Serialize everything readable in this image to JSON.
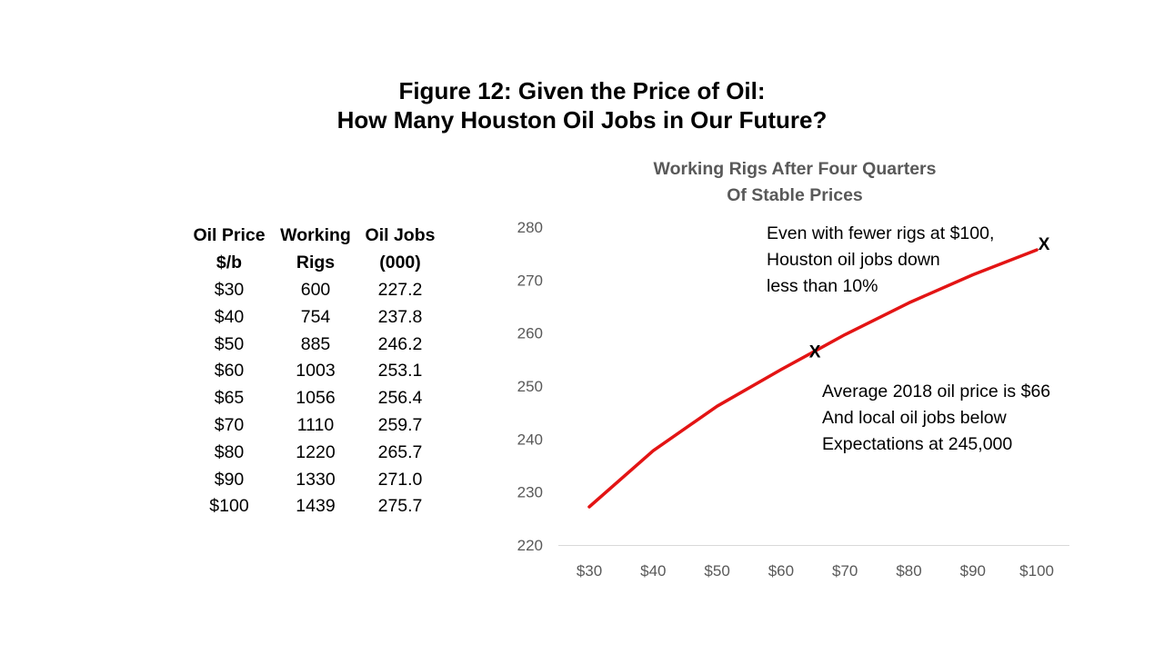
{
  "figure": {
    "title_line1": "Figure 12: Given the Price of Oil:",
    "title_line2": "How Many Houston Oil Jobs in Our Future?"
  },
  "table": {
    "headers": [
      [
        "Oil Price",
        "$/b"
      ],
      [
        "Working",
        "Rigs"
      ],
      [
        "Oil Jobs",
        "(000)"
      ]
    ],
    "rows": [
      [
        "$30",
        "600",
        "227.2"
      ],
      [
        "$40",
        "754",
        "237.8"
      ],
      [
        "$50",
        "885",
        "246.2"
      ],
      [
        "$60",
        "1003",
        "253.1"
      ],
      [
        "$65",
        "1056",
        "256.4"
      ],
      [
        "$70",
        "1110",
        "259.7"
      ],
      [
        "$80",
        "1220",
        "265.7"
      ],
      [
        "$90",
        "1330",
        "271.0"
      ],
      [
        "$100",
        "1439",
        "275.7"
      ]
    ]
  },
  "chart_data": {
    "type": "line",
    "title_line1": "Working Rigs After Four Quarters",
    "title_line2": "Of Stable Prices",
    "x": [
      30,
      40,
      50,
      60,
      65,
      70,
      80,
      90,
      100
    ],
    "categories": [
      "$30",
      "$40",
      "$50",
      "$60",
      "$70",
      "$80",
      "$90",
      "$100"
    ],
    "category_values": [
      30,
      40,
      50,
      60,
      70,
      80,
      90,
      100
    ],
    "series": [
      {
        "values": [
          227.2,
          237.8,
          246.2,
          253.1,
          256.4,
          259.7,
          265.7,
          271.0,
          275.7
        ],
        "color": "#e31414"
      }
    ],
    "ylim": [
      220,
      280
    ],
    "yticks": [
      220,
      230,
      240,
      250,
      260,
      270,
      280
    ],
    "grid": false,
    "markers": [
      {
        "label": "X",
        "x": 65,
        "y": 256.4
      },
      {
        "label": "X",
        "x": 100,
        "y": 275.7
      }
    ],
    "annotations": [
      {
        "lines": [
          "Even with fewer rigs at $100,",
          "Houston oil jobs down",
          "less than 10%"
        ]
      },
      {
        "lines": [
          "Average 2018 oil price is $66",
          "And local oil jobs below",
          "Expectations at 245,000"
        ]
      }
    ]
  }
}
